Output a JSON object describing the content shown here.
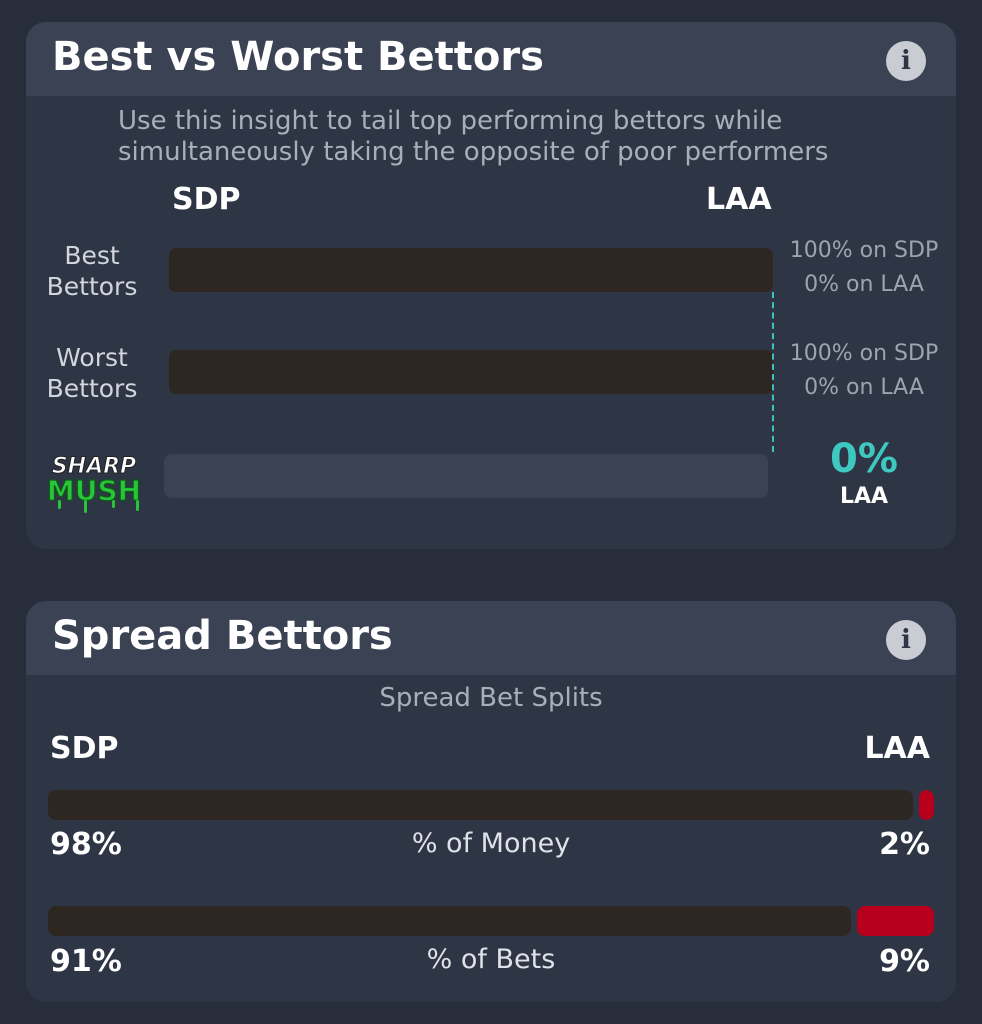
{
  "colors": {
    "sdp_bar": "#2e2620",
    "laa_bar": "#b8001c",
    "accent_teal": "#3ec8c0",
    "card_bg": "#2e3545",
    "header_bg": "#3a4253"
  },
  "best_vs_worst": {
    "title": "Best vs Worst Bettors",
    "info_icon": "i",
    "subtitle": "Use this insight to tail top performing bettors while simultaneously taking the opposite of poor performers",
    "team_left": "SDP",
    "team_right": "LAA",
    "rows": [
      {
        "label": "Best Bettors",
        "sdp_pct": 100,
        "line1": "100% on SDP",
        "line2": "0% on LAA"
      },
      {
        "label": "Worst Bettors",
        "sdp_pct": 100,
        "line1": "100% on SDP",
        "line2": "0% on LAA"
      }
    ],
    "sharp_mush": {
      "logo_top": "SHARP",
      "logo_bottom": "MUSH",
      "value": "0%",
      "team": "LAA",
      "fill_pct": 0
    }
  },
  "spread": {
    "title": "Spread Bettors",
    "info_icon": "i",
    "splits_title": "Spread Bet Splits",
    "team_left": "SDP",
    "team_right": "LAA",
    "metrics": [
      {
        "label": "% of Money",
        "left_value": 98,
        "right_value": 2,
        "left_text": "98%",
        "right_text": "2%"
      },
      {
        "label": "% of Bets",
        "left_value": 91,
        "right_value": 9,
        "left_text": "91%",
        "right_text": "9%"
      }
    ]
  }
}
